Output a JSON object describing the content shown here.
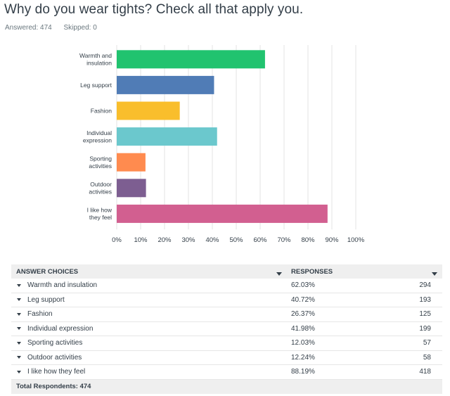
{
  "survey": {
    "question": "Why do you wear tights? Check all that apply you.",
    "answered_label": "Answered: 474",
    "skipped_label": "Skipped: 0"
  },
  "chart_data": {
    "type": "bar",
    "orientation": "horizontal",
    "categories": [
      [
        "Warmth and",
        "insulation"
      ],
      [
        "Leg support"
      ],
      [
        "Fashion"
      ],
      [
        "Individual",
        "expression"
      ],
      [
        "Sporting",
        "activities"
      ],
      [
        "Outdoor",
        "activities"
      ],
      [
        "I like how",
        "they feel"
      ]
    ],
    "values": [
      62.03,
      40.72,
      26.37,
      41.98,
      12.03,
      12.24,
      88.19
    ],
    "colors": [
      "#21c36f",
      "#507cb6",
      "#f9be2c",
      "#6bc8cd",
      "#ff8b4f",
      "#7d5e91",
      "#d25f90"
    ],
    "xlim": [
      0,
      100
    ],
    "xticks": [
      "0%",
      "10%",
      "20%",
      "30%",
      "40%",
      "50%",
      "60%",
      "70%",
      "80%",
      "90%",
      "100%"
    ],
    "grid": true
  },
  "table": {
    "header_choices": "ANSWER CHOICES",
    "header_responses": "RESPONSES",
    "rows": [
      {
        "choice": "Warmth and insulation",
        "percent": "62.03%",
        "count": "294"
      },
      {
        "choice": "Leg support",
        "percent": "40.72%",
        "count": "193"
      },
      {
        "choice": "Fashion",
        "percent": "26.37%",
        "count": "125"
      },
      {
        "choice": "Individual expression",
        "percent": "41.98%",
        "count": "199"
      },
      {
        "choice": "Sporting activities",
        "percent": "12.03%",
        "count": "57"
      },
      {
        "choice": "Outdoor activities",
        "percent": "12.24%",
        "count": "58"
      },
      {
        "choice": "I like how they feel",
        "percent": "88.19%",
        "count": "418"
      }
    ],
    "footer": "Total Respondents: 474"
  }
}
